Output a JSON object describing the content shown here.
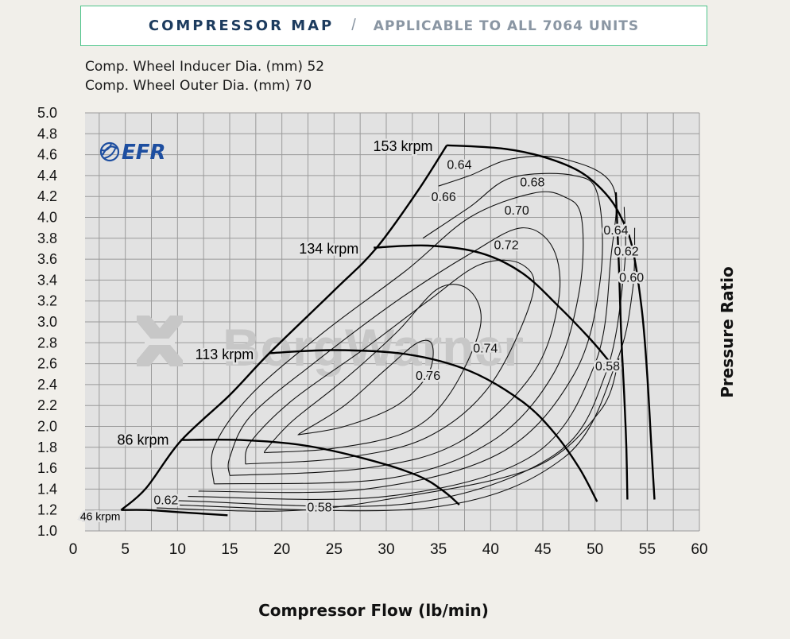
{
  "header": {
    "title": "COMPRESSOR MAP",
    "separator": "/",
    "subtitle": "APPLICABLE TO ALL 7064  UNITS"
  },
  "specs": {
    "inducer_label": "Comp. Wheel Inducer Dia. (mm)",
    "inducer_value": "52",
    "outer_label": "Comp. Wheel Outer Dia. (mm)",
    "outer_value": "70"
  },
  "logo": {
    "text": "EFR",
    "color": "#1d4ea0"
  },
  "watermark": {
    "text": "BorgWarner",
    "color": "#c7c7c7"
  },
  "colors": {
    "background": "#f1efea",
    "plot_bg": "#e2e2e2",
    "grid": "#9a9a9a",
    "accent": "#4dc48a",
    "title": "#1c3b5e"
  },
  "chart_data": {
    "type": "line",
    "title": "COMPRESSOR MAP",
    "xlabel": "Compressor Flow (lb/min)",
    "ylabel": "Pressure Ratio",
    "xlim": [
      0,
      60
    ],
    "ylim": [
      1.0,
      5.0
    ],
    "xticks": [
      0,
      5,
      10,
      15,
      20,
      25,
      30,
      35,
      40,
      45,
      50,
      55,
      60
    ],
    "yticks": [
      "1.0",
      "1.2",
      "1.4",
      "1.6",
      "1.8",
      "2.0",
      "2.2",
      "2.4",
      "2.6",
      "2.8",
      "3.0",
      "3.2",
      "3.4",
      "3.6",
      "3.8",
      "4.0",
      "4.2",
      "4.4",
      "4.6",
      "4.8",
      "5.0"
    ],
    "grid": true,
    "surge_line": [
      [
        4.6,
        1.2
      ],
      [
        7,
        1.41
      ],
      [
        10.3,
        1.86
      ],
      [
        15,
        2.3
      ],
      [
        18.8,
        2.7
      ],
      [
        25,
        3.3
      ],
      [
        29,
        3.7
      ],
      [
        33,
        4.25
      ],
      [
        35.8,
        4.69
      ]
    ],
    "speed_lines": [
      {
        "label": "46 krpm",
        "points": [
          [
            4.6,
            1.2
          ],
          [
            7,
            1.2
          ],
          [
            10,
            1.18
          ],
          [
            14.8,
            1.15
          ]
        ]
      },
      {
        "label": "86 krpm",
        "points": [
          [
            10.3,
            1.87
          ],
          [
            16,
            1.87
          ],
          [
            22,
            1.82
          ],
          [
            28,
            1.69
          ],
          [
            33,
            1.53
          ],
          [
            35.5,
            1.38
          ],
          [
            37,
            1.25
          ]
        ]
      },
      {
        "label": "113 krpm",
        "points": [
          [
            18.8,
            2.7
          ],
          [
            25,
            2.73
          ],
          [
            32,
            2.69
          ],
          [
            38,
            2.53
          ],
          [
            43,
            2.24
          ],
          [
            46,
            1.95
          ],
          [
            48.5,
            1.6
          ],
          [
            50.2,
            1.28
          ]
        ]
      },
      {
        "label": "134 krpm",
        "points": [
          [
            28.8,
            3.71
          ],
          [
            34,
            3.73
          ],
          [
            39,
            3.66
          ],
          [
            43,
            3.47
          ],
          [
            46.5,
            3.15
          ],
          [
            49.5,
            2.84
          ],
          [
            51.3,
            2.63
          ]
        ]
      },
      {
        "label": "153 krpm",
        "points": [
          [
            35.8,
            4.69
          ],
          [
            41,
            4.66
          ],
          [
            45,
            4.58
          ],
          [
            48.5,
            4.44
          ],
          [
            51,
            4.23
          ],
          [
            52.5,
            4.0
          ],
          [
            53.6,
            3.7
          ],
          [
            54.5,
            3.1
          ],
          [
            55,
            2.5
          ],
          [
            55.4,
            1.8
          ],
          [
            55.7,
            1.3
          ]
        ]
      }
    ],
    "choke_line": [
      [
        52,
        4.24
      ],
      [
        52.3,
        3.5
      ],
      [
        52.5,
        2.9
      ],
      [
        52.8,
        2.3
      ],
      [
        53,
        1.8
      ],
      [
        53.1,
        1.3
      ]
    ],
    "efficiency_islands": [
      {
        "label": "0.76",
        "points": [
          [
            21.6,
            1.92
          ],
          [
            26,
            2.0
          ],
          [
            31,
            2.2
          ],
          [
            34,
            2.5
          ],
          [
            34.4,
            2.78
          ],
          [
            33,
            2.8
          ],
          [
            30,
            2.55
          ],
          [
            26,
            2.2
          ],
          [
            22,
            1.95
          ],
          [
            21.6,
            1.92
          ]
        ]
      },
      {
        "label": "0.74",
        "points": [
          [
            18.5,
            1.75
          ],
          [
            25,
            1.79
          ],
          [
            32,
            1.95
          ],
          [
            36,
            2.3
          ],
          [
            39,
            2.95
          ],
          [
            38,
            3.3
          ],
          [
            35,
            3.32
          ],
          [
            31,
            2.9
          ],
          [
            26,
            2.45
          ],
          [
            21,
            2.05
          ],
          [
            18.5,
            1.78
          ],
          [
            18.5,
            1.75
          ]
        ]
      },
      {
        "label": "0.72",
        "points": [
          [
            16.5,
            1.64
          ],
          [
            26,
            1.7
          ],
          [
            34,
            1.9
          ],
          [
            40,
            2.4
          ],
          [
            44,
            3.25
          ],
          [
            43,
            3.55
          ],
          [
            39,
            3.55
          ],
          [
            34,
            3.2
          ],
          [
            28,
            2.75
          ],
          [
            21,
            2.25
          ],
          [
            17,
            1.85
          ],
          [
            16.5,
            1.64
          ]
        ]
      },
      {
        "label": "0.70",
        "points": [
          [
            15,
            1.53
          ],
          [
            28,
            1.6
          ],
          [
            37,
            1.85
          ],
          [
            44,
            2.5
          ],
          [
            46.5,
            3.2
          ],
          [
            46,
            3.7
          ],
          [
            43,
            3.9
          ],
          [
            38,
            3.65
          ],
          [
            31,
            3.2
          ],
          [
            23,
            2.6
          ],
          [
            17,
            2.1
          ],
          [
            15,
            1.7
          ],
          [
            15,
            1.53
          ]
        ]
      },
      {
        "label": "0.68",
        "points": [
          [
            13.5,
            1.45
          ],
          [
            30,
            1.5
          ],
          [
            40,
            1.85
          ],
          [
            46,
            2.5
          ],
          [
            48.5,
            3.3
          ],
          [
            48.7,
            4.0
          ],
          [
            47,
            4.2
          ],
          [
            44,
            4.23
          ],
          [
            38,
            4.0
          ],
          [
            32,
            3.5
          ],
          [
            24,
            2.9
          ],
          [
            17,
            2.3
          ],
          [
            13.5,
            1.8
          ],
          [
            13.5,
            1.45
          ]
        ]
      },
      {
        "label": "0.66",
        "points": [
          [
            12,
            1.38
          ],
          [
            28,
            1.4
          ],
          [
            41,
            1.75
          ],
          [
            48,
            2.5
          ],
          [
            50.5,
            3.4
          ],
          [
            50.3,
            4.2
          ],
          [
            48,
            4.4
          ],
          [
            42,
            4.38
          ],
          [
            38,
            4.1
          ],
          [
            33.5,
            3.8
          ]
        ]
      },
      {
        "label": "0.64",
        "points": [
          [
            11,
            1.33
          ],
          [
            30,
            1.33
          ],
          [
            44,
            1.72
          ],
          [
            50,
            2.6
          ],
          [
            51.5,
            3.6
          ],
          [
            51.7,
            4.3
          ],
          [
            47,
            4.56
          ],
          [
            42,
            4.56
          ],
          [
            38,
            4.4
          ],
          [
            35,
            4.3
          ]
        ]
      },
      {
        "label": "0.62",
        "points": [
          [
            10,
            1.29
          ],
          [
            32,
            1.26
          ],
          [
            46,
            1.72
          ],
          [
            51,
            2.5
          ],
          [
            52.8,
            3.5
          ],
          [
            52.8,
            4.1
          ]
        ]
      },
      {
        "label": "0.60",
        "points": [
          [
            9,
            1.25
          ],
          [
            34,
            1.22
          ],
          [
            47,
            1.7
          ],
          [
            52,
            2.6
          ],
          [
            53.6,
            3.3
          ],
          [
            53.8,
            3.9
          ]
        ]
      },
      {
        "label": "0.58",
        "points": [
          [
            8,
            1.22
          ],
          [
            20,
            1.19
          ],
          [
            30,
            1.3
          ],
          [
            44,
            1.6
          ],
          [
            50.5,
            2.15
          ],
          [
            52.3,
            2.65
          ]
        ]
      }
    ],
    "efficiency_labels": [
      {
        "text": "0.64",
        "x": 37,
        "y": 4.5
      },
      {
        "text": "0.68",
        "x": 44,
        "y": 4.33
      },
      {
        "text": "0.66",
        "x": 35.5,
        "y": 4.19
      },
      {
        "text": "0.70",
        "x": 42.5,
        "y": 4.06
      },
      {
        "text": "0.72",
        "x": 41.5,
        "y": 3.73
      },
      {
        "text": "0.64",
        "x": 52,
        "y": 3.87
      },
      {
        "text": "0.62",
        "x": 53,
        "y": 3.67
      },
      {
        "text": "0.60",
        "x": 53.5,
        "y": 3.42
      },
      {
        "text": "0.74",
        "x": 39.5,
        "y": 2.74
      },
      {
        "text": "0.76",
        "x": 34,
        "y": 2.48
      },
      {
        "text": "0.58",
        "x": 51.2,
        "y": 2.57
      },
      {
        "text": "0.62",
        "x": 8.9,
        "y": 1.29
      },
      {
        "text": "0.58",
        "x": 23.6,
        "y": 1.22
      }
    ],
    "speed_labels": [
      {
        "text": "153 krpm",
        "x": 31.6,
        "y": 4.68,
        "size": "large"
      },
      {
        "text": "134 krpm",
        "x": 24.5,
        "y": 3.7,
        "size": "large"
      },
      {
        "text": "113 krpm",
        "x": 14.5,
        "y": 2.69,
        "size": "large"
      },
      {
        "text": "86 krpm",
        "x": 6.7,
        "y": 1.87,
        "size": "large"
      },
      {
        "text": "46 krpm",
        "x": 2.6,
        "y": 1.14,
        "size": "small"
      }
    ]
  }
}
